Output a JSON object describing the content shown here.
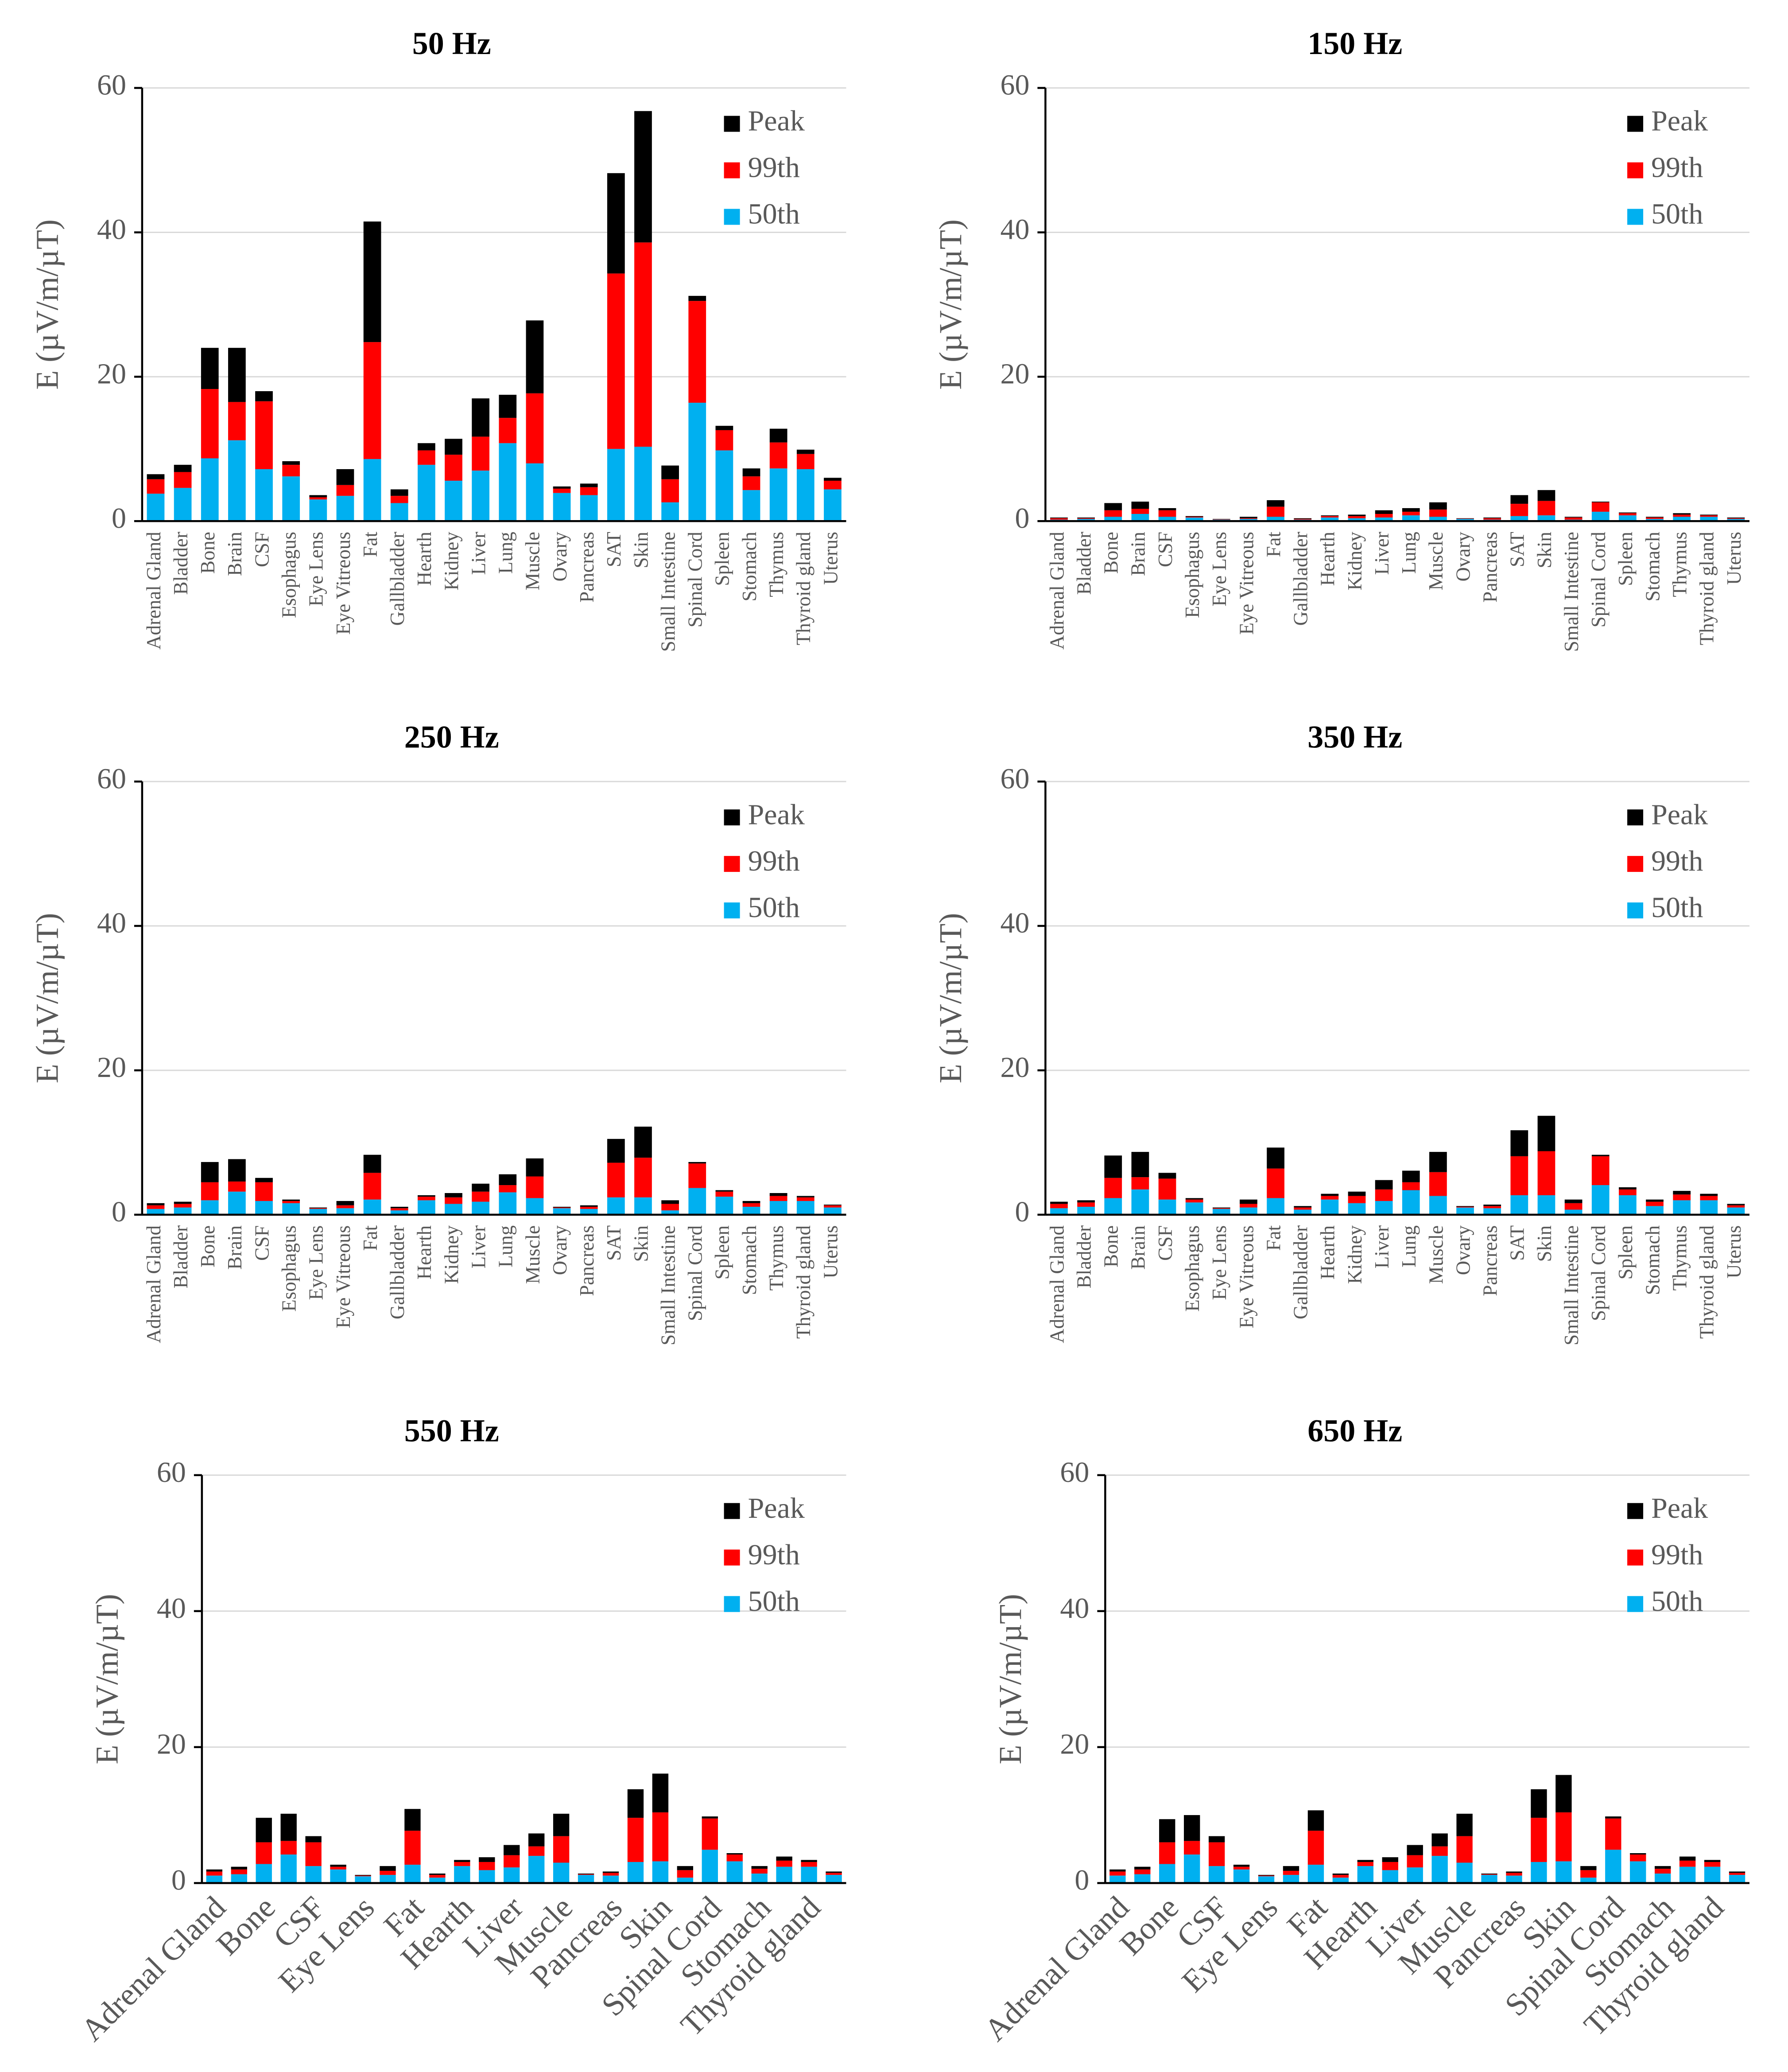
{
  "chart_data": [
    {
      "type": "bar",
      "stacked": true,
      "title": "50 Hz",
      "y_label": "E (µV/m/µT)",
      "xlabel_rotation": 90,
      "legend": "upper right",
      "grid": true,
      "ylim": [
        0,
        60
      ],
      "yticks": [
        0,
        20,
        40,
        60
      ],
      "categories": [
        "Adrenal Gland",
        "Bladder",
        "Bone",
        "Brain",
        "CSF",
        "Esophagus",
        "Eye Lens",
        "Eye Vitreous",
        "Fat",
        "Gallbladder",
        "Hearth",
        "Kidney",
        "Liver",
        "Lung",
        "Muscle",
        "Ovary",
        "Pancreas",
        "SAT",
        "Skin",
        "Small Intestine",
        "Spinal Cord",
        "Spleen",
        "Stomach",
        "Thymus",
        "Thyroid gland",
        "Uterus"
      ],
      "series": [
        {
          "name": "50th",
          "color": "#00b0f0",
          "values": [
            3.8,
            4.6,
            8.7,
            11.2,
            7.2,
            6.2,
            3.0,
            3.5,
            8.6,
            2.5,
            7.8,
            5.6,
            7.0,
            10.8,
            8.0,
            3.9,
            3.6,
            10.0,
            10.3,
            2.6,
            16.4,
            9.8,
            4.3,
            7.3,
            7.2,
            4.4
          ]
        },
        {
          "name": "99th",
          "color": "#ff0000",
          "values": [
            2.0,
            2.2,
            9.6,
            5.3,
            9.4,
            1.6,
            0.3,
            1.5,
            16.2,
            1.0,
            2.0,
            3.6,
            4.7,
            3.5,
            9.7,
            0.6,
            1.1,
            24.3,
            28.3,
            3.2,
            14.1,
            2.8,
            1.9,
            3.6,
            2.1,
            1.2
          ]
        },
        {
          "name": "Peak",
          "color": "#000000",
          "values": [
            0.7,
            1.0,
            5.7,
            7.5,
            1.4,
            0.5,
            0.3,
            2.2,
            16.7,
            0.9,
            1.0,
            2.2,
            5.3,
            3.2,
            10.1,
            0.3,
            0.5,
            13.9,
            18.2,
            1.9,
            0.7,
            0.6,
            1.1,
            1.9,
            0.6,
            0.4
          ]
        }
      ]
    },
    {
      "type": "bar",
      "stacked": true,
      "title": "150 Hz",
      "y_label": "E (µV/m/µT)",
      "xlabel_rotation": 90,
      "legend": "upper right",
      "grid": true,
      "ylim": [
        0,
        60
      ],
      "yticks": [
        0,
        20,
        40,
        60
      ],
      "categories": [
        "Adrenal Gland",
        "Bladder",
        "Bone",
        "Brain",
        "CSF",
        "Esophagus",
        "Eye Lens",
        "Eye Vitreous",
        "Fat",
        "Gallbladder",
        "Hearth",
        "Kidney",
        "Liver",
        "Lung",
        "Muscle",
        "Ovary",
        "Pancreas",
        "SAT",
        "Skin",
        "Small Intestine",
        "Spinal Cord",
        "Spleen",
        "Stomach",
        "Thymus",
        "Thyroid gland",
        "Uterus"
      ],
      "series": [
        {
          "name": "50th",
          "color": "#00b0f0",
          "values": [
            0.2,
            0.3,
            0.6,
            1.0,
            0.6,
            0.5,
            0.2,
            0.3,
            0.6,
            0.2,
            0.5,
            0.4,
            0.5,
            0.8,
            0.6,
            0.3,
            0.2,
            0.7,
            0.8,
            0.2,
            1.3,
            0.8,
            0.3,
            0.6,
            0.6,
            0.3
          ]
        },
        {
          "name": "99th",
          "color": "#ff0000",
          "values": [
            0.2,
            0.1,
            0.9,
            0.7,
            0.9,
            0.1,
            0.05,
            0.1,
            1.4,
            0.1,
            0.2,
            0.3,
            0.5,
            0.5,
            1.0,
            0.05,
            0.2,
            1.7,
            2.0,
            0.3,
            1.3,
            0.3,
            0.2,
            0.3,
            0.2,
            0.1
          ]
        },
        {
          "name": "Peak",
          "color": "#000000",
          "values": [
            0.1,
            0.1,
            1.0,
            1.0,
            0.3,
            0.1,
            0.05,
            0.2,
            0.9,
            0.1,
            0.1,
            0.2,
            0.5,
            0.5,
            1.0,
            0.05,
            0.1,
            1.2,
            1.5,
            0.1,
            0.1,
            0.1,
            0.1,
            0.2,
            0.1,
            0.1
          ]
        }
      ]
    },
    {
      "type": "bar",
      "stacked": true,
      "title": "250 Hz",
      "y_label": "E (µV/m/µT)",
      "xlabel_rotation": 90,
      "legend": "upper right",
      "grid": true,
      "ylim": [
        0,
        60
      ],
      "yticks": [
        0,
        20,
        40,
        60
      ],
      "categories": [
        "Adrenal Gland",
        "Bladder",
        "Bone",
        "Brain",
        "CSF",
        "Esophagus",
        "Eye Lens",
        "Eye Vitreous",
        "Fat",
        "Gallbladder",
        "Hearth",
        "Kidney",
        "Liver",
        "Lung",
        "Muscle",
        "Ovary",
        "Pancreas",
        "SAT",
        "Skin",
        "Small Intestine",
        "Spinal Cord",
        "Spleen",
        "Stomach",
        "Thymus",
        "Thyroid gland",
        "Uterus"
      ],
      "series": [
        {
          "name": "50th",
          "color": "#00b0f0",
          "values": [
            0.8,
            1.0,
            2.0,
            3.2,
            1.9,
            1.6,
            0.8,
            0.9,
            2.1,
            0.6,
            2.0,
            1.5,
            1.8,
            3.1,
            2.3,
            0.9,
            0.8,
            2.4,
            2.4,
            0.6,
            3.7,
            2.5,
            1.1,
            1.9,
            1.9,
            1.0
          ]
        },
        {
          "name": "99th",
          "color": "#ff0000",
          "values": [
            0.5,
            0.5,
            2.5,
            1.4,
            2.6,
            0.3,
            0.1,
            0.4,
            3.7,
            0.3,
            0.5,
            0.9,
            1.4,
            1.0,
            3.0,
            0.1,
            0.3,
            4.8,
            5.5,
            0.9,
            3.4,
            0.7,
            0.5,
            0.7,
            0.5,
            0.3
          ]
        },
        {
          "name": "Peak",
          "color": "#000000",
          "values": [
            0.3,
            0.3,
            2.8,
            3.1,
            0.6,
            0.2,
            0.1,
            0.6,
            2.5,
            0.2,
            0.2,
            0.6,
            1.1,
            1.5,
            2.5,
            0.1,
            0.2,
            3.3,
            4.3,
            0.5,
            0.2,
            0.2,
            0.3,
            0.4,
            0.2,
            0.1
          ]
        }
      ]
    },
    {
      "type": "bar",
      "stacked": true,
      "title": "350 Hz",
      "y_label": "E (µV/m/µT)",
      "xlabel_rotation": 90,
      "legend": "upper right",
      "grid": true,
      "ylim": [
        0,
        60
      ],
      "yticks": [
        0,
        20,
        40,
        60
      ],
      "categories": [
        "Adrenal Gland",
        "Bladder",
        "Bone",
        "Brain",
        "CSF",
        "Esophagus",
        "Eye Lens",
        "Eye Vitreous",
        "Fat",
        "Gallbladder",
        "Hearth",
        "Kidney",
        "Liver",
        "Lung",
        "Muscle",
        "Ovary",
        "Pancreas",
        "SAT",
        "Skin",
        "Small Intestine",
        "Spinal Cord",
        "Spleen",
        "Stomach",
        "Thymus",
        "Thyroid gland",
        "Uterus"
      ],
      "series": [
        {
          "name": "50th",
          "color": "#00b0f0",
          "values": [
            0.9,
            1.1,
            2.3,
            3.5,
            2.1,
            1.7,
            0.8,
            1.0,
            2.3,
            0.7,
            2.1,
            1.6,
            1.9,
            3.4,
            2.6,
            1.0,
            0.9,
            2.7,
            2.7,
            0.7,
            4.1,
            2.7,
            1.2,
            2.0,
            2.0,
            1.0
          ]
        },
        {
          "name": "99th",
          "color": "#ff0000",
          "values": [
            0.6,
            0.6,
            2.8,
            1.7,
            2.9,
            0.4,
            0.1,
            0.5,
            4.1,
            0.3,
            0.5,
            1.0,
            1.6,
            1.1,
            3.3,
            0.1,
            0.3,
            5.4,
            6.1,
            0.9,
            4.0,
            0.8,
            0.6,
            0.8,
            0.6,
            0.3
          ]
        },
        {
          "name": "Peak",
          "color": "#000000",
          "values": [
            0.3,
            0.3,
            3.1,
            3.5,
            0.8,
            0.2,
            0.1,
            0.6,
            2.9,
            0.2,
            0.3,
            0.6,
            1.3,
            1.6,
            2.8,
            0.1,
            0.2,
            3.6,
            4.9,
            0.5,
            0.2,
            0.3,
            0.3,
            0.5,
            0.3,
            0.2
          ]
        }
      ]
    },
    {
      "type": "bar",
      "stacked": true,
      "title": "550 Hz",
      "y_label": "E (µV/m/µT)",
      "xlabel_rotation": 45,
      "legend": "upper right",
      "grid": true,
      "ylim": [
        0,
        60
      ],
      "yticks": [
        0,
        20,
        40,
        60
      ],
      "categories": [
        "Adrenal Gland",
        null,
        "Bone",
        null,
        "CSF",
        null,
        "Eye Lens",
        null,
        "Fat",
        null,
        "Hearth",
        null,
        "Liver",
        null,
        "Muscle",
        null,
        "Pancreas",
        null,
        "Skin",
        null,
        "Spinal Cord",
        null,
        "Stomach",
        null,
        "Thyroid gland",
        null
      ],
      "series": [
        {
          "name": "50th",
          "color": "#00b0f0",
          "values": [
            1.1,
            1.3,
            2.8,
            4.2,
            2.5,
            2.0,
            1.0,
            1.2,
            2.7,
            0.8,
            2.5,
            1.9,
            2.3,
            4.0,
            3.0,
            1.2,
            1.1,
            3.1,
            3.2,
            0.8,
            4.9,
            3.2,
            1.4,
            2.4,
            2.4,
            1.2
          ]
        },
        {
          "name": "99th",
          "color": "#ff0000",
          "values": [
            0.6,
            0.7,
            3.2,
            2.0,
            3.5,
            0.4,
            0.1,
            0.6,
            5.0,
            0.4,
            0.6,
            1.2,
            1.8,
            1.4,
            3.9,
            0.1,
            0.4,
            6.5,
            7.2,
            1.1,
            4.6,
            1.0,
            0.7,
            0.9,
            0.7,
            0.3
          ]
        },
        {
          "name": "Peak",
          "color": "#000000",
          "values": [
            0.3,
            0.4,
            3.6,
            4.0,
            0.9,
            0.3,
            0.1,
            0.7,
            3.2,
            0.2,
            0.3,
            0.7,
            1.5,
            1.9,
            3.3,
            0.1,
            0.2,
            4.2,
            5.7,
            0.6,
            0.3,
            0.2,
            0.4,
            0.6,
            0.3,
            0.2
          ]
        }
      ]
    },
    {
      "type": "bar",
      "stacked": true,
      "title": "650 Hz",
      "y_label": "E (µV/m/µT)",
      "xlabel_rotation": 45,
      "legend": "upper right",
      "grid": true,
      "ylim": [
        0,
        60
      ],
      "yticks": [
        0,
        20,
        40,
        60
      ],
      "categories": [
        "Adrenal Gland",
        null,
        "Bone",
        null,
        "CSF",
        null,
        "Eye Lens",
        null,
        "Fat",
        null,
        "Hearth",
        null,
        "Liver",
        null,
        "Muscle",
        null,
        "Pancreas",
        null,
        "Skin",
        null,
        "Spinal Cord",
        null,
        "Stomach",
        null,
        "Thyroid gland",
        null
      ],
      "series": [
        {
          "name": "50th",
          "color": "#00b0f0",
          "values": [
            1.1,
            1.3,
            2.8,
            4.2,
            2.5,
            2.0,
            1.0,
            1.2,
            2.7,
            0.8,
            2.5,
            1.9,
            2.3,
            4.0,
            3.0,
            1.2,
            1.1,
            3.1,
            3.2,
            0.8,
            4.9,
            3.2,
            1.4,
            2.4,
            2.4,
            1.2
          ]
        },
        {
          "name": "99th",
          "color": "#ff0000",
          "values": [
            0.6,
            0.7,
            3.2,
            2.0,
            3.5,
            0.4,
            0.1,
            0.6,
            5.0,
            0.4,
            0.6,
            1.2,
            1.8,
            1.4,
            3.9,
            0.1,
            0.4,
            6.5,
            7.2,
            1.1,
            4.6,
            1.0,
            0.7,
            0.9,
            0.7,
            0.3
          ]
        },
        {
          "name": "Peak",
          "color": "#000000",
          "values": [
            0.3,
            0.4,
            3.4,
            3.8,
            0.9,
            0.3,
            0.1,
            0.7,
            3.0,
            0.2,
            0.3,
            0.7,
            1.5,
            1.9,
            3.3,
            0.1,
            0.2,
            4.2,
            5.5,
            0.6,
            0.3,
            0.2,
            0.4,
            0.6,
            0.3,
            0.2
          ]
        }
      ]
    }
  ]
}
